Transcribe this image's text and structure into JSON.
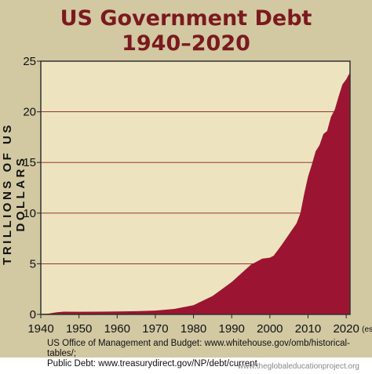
{
  "chart_data": {
    "type": "area",
    "title": "US Government Debt",
    "subtitle": "1940–2020",
    "ylabel": "TRILLIONS OF US DOLLARS",
    "xlabel": "",
    "xlim": [
      1940,
      2021
    ],
    "ylim": [
      0,
      25
    ],
    "xticks": [
      "1940",
      "1950",
      "1960",
      "1970",
      "1980",
      "1990",
      "2000",
      "2010",
      "2020"
    ],
    "yticks": [
      "0",
      "5",
      "10",
      "15",
      "20",
      "25"
    ],
    "x_annotation": "(est.)",
    "grid": "horizontal",
    "colors": {
      "fill": "#9b1532",
      "background": "#ede4bf",
      "panel": "#d2c8a2",
      "gridline": "#8a1a1a",
      "title": "#7a1a1e"
    },
    "series": [
      {
        "x": [
          1940,
          1942,
          1944,
          1946,
          1950,
          1955,
          1960,
          1965,
          1970,
          1975,
          1980,
          1985,
          1990,
          1995,
          1998,
          2000,
          2001,
          2003,
          2005,
          2007,
          2008,
          2009,
          2010,
          2011,
          2012,
          2013,
          2014,
          2015,
          2016,
          2017,
          2018,
          2019,
          2020,
          2021
        ],
        "y": [
          0.05,
          0.08,
          0.2,
          0.27,
          0.26,
          0.27,
          0.29,
          0.32,
          0.38,
          0.54,
          0.91,
          1.82,
          3.2,
          4.9,
          5.5,
          5.6,
          5.8,
          6.8,
          7.9,
          9.0,
          10.0,
          11.9,
          13.6,
          14.8,
          16.1,
          16.7,
          17.8,
          18.1,
          19.5,
          20.2,
          21.5,
          22.7,
          23.2,
          23.9
        ]
      }
    ]
  },
  "source_line1": "US Office of Management and Budget: www.whitehouse.gov/omb/historical-tables/;",
  "source_line2": "Public Debt: www.treasurydirect.gov/NP/debt/current",
  "footer": "www.theglobaleducationproject.org"
}
